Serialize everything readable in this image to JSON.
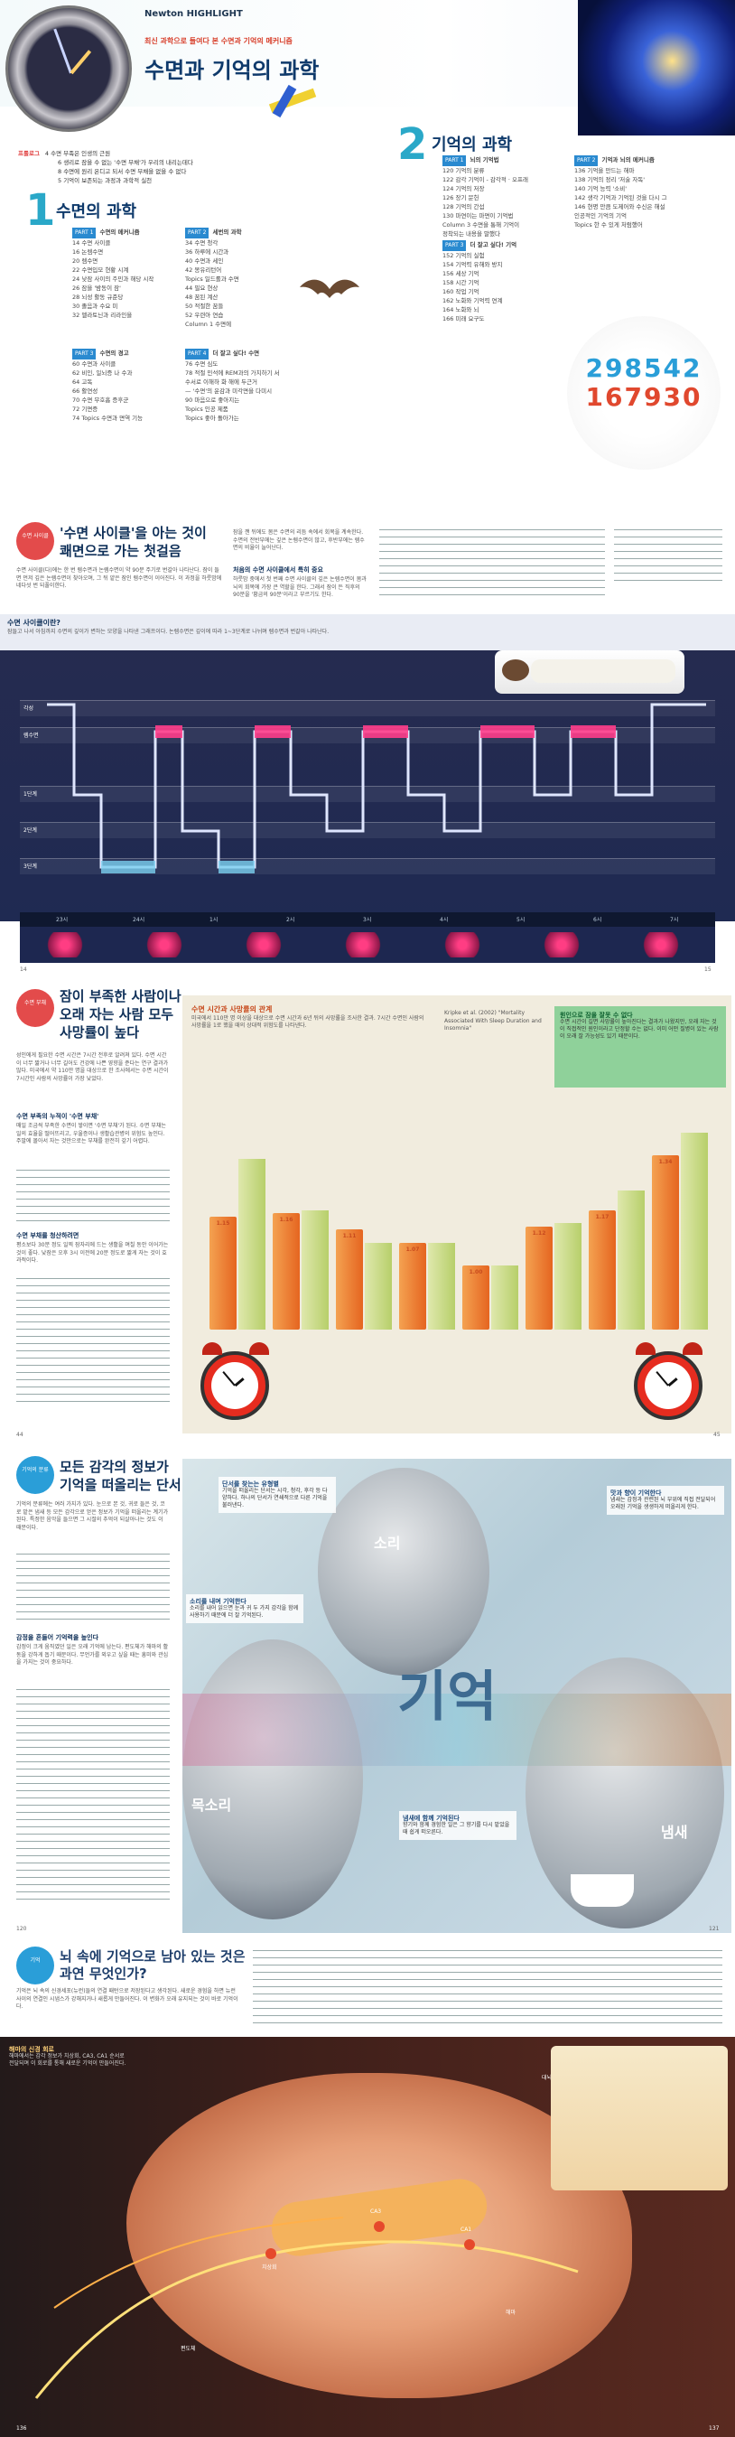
{
  "toc": {
    "newton": "Newton HIGHLIGHT",
    "subtitle": "최신 과학으로 들여다 본 수면과 기억의 메커니즘",
    "title": "수면과 기억의 과학",
    "prologue_label": "프롤로그",
    "prologue": [
      "4  수면 부족은 인생의 근원",
      "6  생리로 잠을 수 없는 '수면 부채'가 우리의 내리는데다",
      "8  수면에 원리 온디고 되서 수면 부채을 없을 수 없다",
      "5  기억이 보존되는 과정과 과학적 실천"
    ],
    "s1_num": "1",
    "s1_title": "수면의 과학",
    "s1_part1": "PART 1",
    "s1_part1_title": "수면의 메커니즘",
    "s1_col1": [
      "14  수면 사이클",
      "16  논렘수면",
      "20  렘수면",
      "22  수면입모 현황 시계",
      "24  낮잠 사이의 주민과 해당 시작",
      "26  잠을 '밤동이 잠'",
      "28  뇌성 활동 규준당",
      "30  졸음과 수요 미",
      "32  멜라토닌과 리라인을"
    ],
    "s1_part2": "PART 2",
    "s1_part2_title": "세번의 과학",
    "s1_col2": [
      "34  수면 청각",
      "36  하루에 시간과",
      "40  수면과 세인",
      "42  몽유리턴어",
      "  Topics  일드롤과 수면",
      "44  필요 현상",
      "48  꿈된 계산",
      "50  적절한 꿈들",
      "52  우련아 연습",
      "  Column 1  수면에"
    ],
    "s1_part3": "PART 3",
    "s1_part3_title": "수면의 경고",
    "s1_col3": [
      "60  수면과 사이클",
      "62  비인, 일뇌증 나 수과",
      "64  고독",
      "66  활연성",
      "70  수면 무호흡 증후군",
      "72  기면증",
      "74  Topics  수면과 면역 기능"
    ],
    "s1_part4": "PART 4",
    "s1_part4_title": "더 잘고 싶다! 수면",
    "s1_col4": [
      "76  수면 심도",
      "78  적절 민석에 REM과의 가치하기 서",
      "     수서로 이해하 화 해에 두근거",
      "      — '수면'의 운감과 미각면을 다미시",
      "90  마음으로 좋아지는",
      "  Topics  인공 제품",
      "  Topics  좋아 돌아가는"
    ],
    "s2_num": "2",
    "s2_title": "기억의 과학",
    "s2_part1": "PART 1",
    "s2_part1_title": "뇌의 기억법",
    "s2_col1": [
      "120  기억의 분류",
      "122  감각 기억이 - 감각적 · 오프래",
      "124  기억의 저장",
      "126  장기 문헌",
      "128  기억의 간섭",
      "130  마연이는 마면이 기억법",
      "  Column 3  수면을 통해 기억이",
      "      정착되는 내용을 말했다"
    ],
    "s2_part2": "PART 2",
    "s2_part2_title": "기억과 뇌의 메커니즘",
    "s2_col2": [
      "136  기억을 만드는 해마",
      "138  기억의 정리 '저술 자독'",
      "140  기억 능력 '소비'",
      "142  생각 기억과 기억된 것을 다시 그",
      "146  현명 만큼 도제어와 수신은 해설",
      "     인공적인 기억의 기억",
      "  Topics  한 수 있게 처럼했어"
    ],
    "s2_part3": "PART 3",
    "s2_part3_title": "더 잘고 싶다! 기억",
    "s2_col3": [
      "152  기억의 실험",
      "154  기억력 유해와 방지",
      "156  세상 기억",
      "158  시간 기억",
      "160  작업 기억",
      "162  노화와 기억력 연계",
      "164  노화와 뇌",
      "166  미래  요구도"
    ],
    "numbers": [
      "298542",
      "167930"
    ],
    "page_num_left": "",
    "page_num_right": ""
  },
  "sp2": {
    "pill": "수면 사이클",
    "head1": "'수면 사이클'을 아는 것이",
    "head2": "쾌면으로 가는 첫걸음",
    "body_left": "수면 사이클(다)에는 한 번 렘수면과 논렘수면이 약 90분 주기로 번갈아 나타난다. 잠이 들면 먼저 깊은 논렘수면이 찾아오며, 그 뒤 얕은 잠인 렘수면이 이어진다. 이 과정을 하룻밤에 네다섯 번 되풀이한다.",
    "body_mid": "잠을 깬 뒤에도 몸은 수면의 리듬 속에서 회복을 계속한다. 수면의 전반부에는 깊은 논렘수면이 많고, 후반부에는 렘수면의 비율이 늘어난다.",
    "sub_head": "처음의 수면 사이클에서 특히 중요",
    "body_right": "하룻밤 중에서 첫 번째 수면 사이클의 깊은 논렘수면이 몸과 뇌의 회복에 가장 큰 역할을 한다. 그래서 잠이 든 직후의 90분을 '황금의 90분'이라고 부르기도 한다.",
    "graph_title": "수면 사이클이란?",
    "graph_desc": "잠들고 나서 아침까지 수면의 깊이가 변하는 모양을 나타낸 그래프이다. 논렘수면은 깊이에 따라 1~3단계로 나뉘며 렘수면과 번갈아 나타난다.",
    "stages": [
      "각성",
      "렘수면",
      "1단계",
      "2단계",
      "3단계"
    ],
    "times": [
      "23시",
      "24시",
      "1시",
      "2시",
      "3시",
      "4시",
      "5시",
      "6시",
      "7시"
    ],
    "page_left": "14",
    "page_right": "15"
  },
  "sp3": {
    "pill": "수면 부채",
    "head1": "잠이 부족한 사람이나",
    "head2": "오래 자는 사람 모두",
    "head3": "사망률이 높다",
    "body": "성인에게 필요한 수면 시간은 7시간 전후로 알려져 있다. 수면 시간이 너무 짧거나 너무 길어도 건강에 나쁜 영향을 준다는 연구 결과가 많다. 미국에서 약 110만 명을 대상으로 한 조사에서는 수면 시간이 7시간인 사람의 사망률이 가장 낮았다.",
    "sub1": "수면 부족의 누적이 '수면 부채'",
    "body2": "매일 조금씩 부족한 수면이 쌓이면 '수면 부채'가 된다. 수면 부채는 일의 효율을 떨어뜨리고, 우울증이나 생활습관병의 위험도 높인다. 주말에 몰아서 자는 것만으로는 부채를 완전히 갚기 어렵다.",
    "sub2": "수면 부채를 청산하려면",
    "body3": "평소보다 30분 정도 일찍 잠자리에 드는 생활을 며칠 동안 이어가는 것이 좋다. 낮잠은 오후 3시 이전에 20분 정도로 짧게 자는 것이 효과적이다.",
    "chart_title": "수면 시간과 사망률의 관계",
    "chart_desc": "미국에서 110만 명 이상을 대상으로 수면 시간과 6년 뒤의 사망률을 조사한 결과. 7시간 수면인 사람의 사망률을 1로 했을 때의 상대적 위험도를 나타낸다.",
    "note_title": "원인으로 잠을 잘못 수 없다",
    "note_body": "수면 시간이 길면 사망률이 높아진다는 결과가 나왔지만, 오래 자는 것이 직접적인 원인이라고 단정할 수는 없다. 이미 어떤 질병이 있는 사람이 오래 잘 가능성도 있기 때문이다.",
    "source": "Kripke et al. (2002) \"Mortality Associated With Sleep Duration and Insomnia\"",
    "page_left": "44",
    "page_right": "45"
  },
  "chart_data": {
    "type": "bar",
    "title": "수면 시간과 사망률의 관계",
    "categories": [
      "3",
      "4",
      "5",
      "6",
      "7",
      "8",
      "9",
      "10"
    ],
    "series": [
      {
        "name": "",
        "values": [
          1.15,
          1.16,
          1.11,
          1.07,
          1.0,
          1.12,
          1.17,
          1.34
        ]
      },
      {
        "name": "",
        "values": [
          1.33,
          1.17,
          1.07,
          1.07,
          1.0,
          1.13,
          1.23,
          1.41
        ]
      }
    ],
    "value_labels": [
      "1.15",
      "1.16",
      "1.11",
      "1.07",
      "1.00",
      "1.12",
      "1.17",
      "1.34"
    ],
    "ylim": [
      0.8,
      1.5
    ],
    "xlabel": "",
    "ylabel": ""
  },
  "sp4": {
    "pill": "기억의 분류",
    "head1": "모든 감각의 정보가",
    "head2": "기억을 떠올리는 단서",
    "body": "기억의 분류에는 여러 가지가 있다. 눈으로 본 것, 귀로 들은 것, 코로 맡은 냄새 등 모든 감각으로 얻은 정보가 기억을 떠올리는 계기가 된다. 특정한 음악을 들으면 그 시절의 추억이 되살아나는 것도 이 때문이다.",
    "sub": "감정을 흔들어 기억력을 높인다",
    "body2": "감정이 크게 움직였던 일은 오래 기억에 남는다. 편도체가 해마의 활동을 강하게 돕기 때문이다. 무언가를 외우고 싶을 때는 흥미와 관심을 가지는 것이 중요하다.",
    "kanji": "기억",
    "labels": [
      "소리",
      "목소리",
      "냄새"
    ],
    "callouts": [
      {
        "t": "단서를 찾는는 유형별",
        "b": "기억을 떠올리는 단서는 시각, 청각, 후각 등 다양하다. 하나의 단서가 연쇄적으로 다른 기억을 불러낸다."
      },
      {
        "t": "소리를 내며 기억한다",
        "b": "소리를 내어 읽으면 눈과 귀 두 가지 감각을 함께 사용하기 때문에 더 잘 기억된다."
      },
      {
        "t": "맛과 향이 기억한다",
        "b": "냄새는 감정과 관련된 뇌 부위에 직접 전달되어 오래된 기억을 생생하게 떠올리게 한다."
      },
      {
        "t": "냄새에 함께 기억된다",
        "b": "향기와 함께 경험한 일은 그 향기를 다시 맡았을 때 쉽게 떠오른다."
      }
    ],
    "page_left": "120",
    "page_right": "121"
  },
  "sp5": {
    "pill": "기억",
    "head1": "뇌 속에 기억으로 남아 있는 것은",
    "head2": "과연 무엇인가?",
    "body": "기억은 뇌 속의 신경세포(뉴런)들의 연결 패턴으로 저장된다고 생각된다. 새로운 경험을 하면 뉴런 사이의 연결인 시냅스가 강해지거나 새롭게 만들어진다. 이 변화가 오래 유지되는 것이 바로 기억이다.",
    "box_title": "해마의 신경 회로",
    "box_body": "해마에서는 감각 정보가 치상회, CA3, CA1 순서로 전달되며 이 회로를 통해 새로운 기억이 만들어진다.",
    "labels": [
      "치상회",
      "CA3",
      "CA1",
      "해마",
      "편도체",
      "대뇌피질"
    ],
    "page_left": "136",
    "page_right": "137"
  }
}
